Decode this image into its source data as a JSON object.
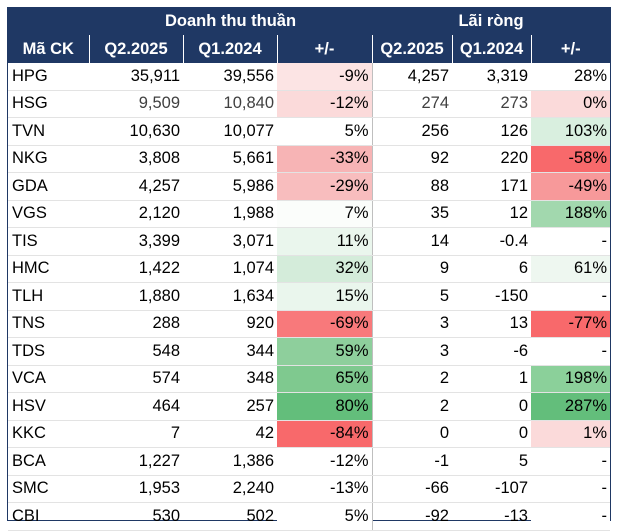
{
  "header": {
    "group_revenue": "Doanh thu thuần",
    "group_profit": "Lãi ròng",
    "col_ticker": "Mã CK",
    "col_q2": "Q2.2025",
    "col_q1": "Q1.2024",
    "col_change": "+/-",
    "col_q2b": "Q2.2025",
    "col_q1b": "Q1.2024",
    "col_changeb": "+/-"
  },
  "colors": {
    "header_bg": "#1f3864",
    "header_text": "#ffffff",
    "negative_scale": "#f8696b",
    "positive_scale": "#63be7b"
  },
  "rows": [
    {
      "ticker": "HPG",
      "rev_q2": "35,911",
      "rev_q1": "39,556",
      "rev_chg": "-9%",
      "rev_bg": "#fce4e4",
      "np_q2": "4,257",
      "np_q1": "3,319",
      "np_chg": "28%",
      "np_bg": "#ffffff"
    },
    {
      "ticker": "HSG",
      "rev_q2": "9,509",
      "rev_q1": "10,840",
      "rev_chg": "-12%",
      "rev_bg": "#fbdada",
      "np_q2": "274",
      "np_q1": "273",
      "np_chg": "0%",
      "np_bg": "#fbdada"
    },
    {
      "ticker": "TVN",
      "rev_q2": "10,630",
      "rev_q1": "10,077",
      "rev_chg": "5%",
      "rev_bg": "#ffffff",
      "np_q2": "256",
      "np_q1": "126",
      "np_chg": "103%",
      "np_bg": "#d9efdf"
    },
    {
      "ticker": "NKG",
      "rev_q2": "3,808",
      "rev_q1": "5,661",
      "rev_chg": "-33%",
      "rev_bg": "#f7b4b5",
      "np_q2": "92",
      "np_q1": "220",
      "np_chg": "-58%",
      "np_bg": "#f8696b"
    },
    {
      "ticker": "GDA",
      "rev_q2": "4,257",
      "rev_q1": "5,986",
      "rev_chg": "-29%",
      "rev_bg": "#f8bdbe",
      "np_q2": "88",
      "np_q1": "171",
      "np_chg": "-49%",
      "np_bg": "#f7999a"
    },
    {
      "ticker": "VGS",
      "rev_q2": "2,120",
      "rev_q1": "1,988",
      "rev_chg": "7%",
      "rev_bg": "#fbfdfb",
      "np_q2": "35",
      "np_q1": "12",
      "np_chg": "188%",
      "np_bg": "#a2d8ae"
    },
    {
      "ticker": "TIS",
      "rev_q2": "3,399",
      "rev_q1": "3,071",
      "rev_chg": "11%",
      "rev_bg": "#eaf6ed",
      "np_q2": "14",
      "np_q1": "-0.4",
      "np_chg": "-",
      "np_bg": "#ffffff"
    },
    {
      "ticker": "HMC",
      "rev_q2": "1,422",
      "rev_q1": "1,074",
      "rev_chg": "32%",
      "rev_bg": "#d4ecda",
      "np_q2": "9",
      "np_q1": "6",
      "np_chg": "61%",
      "np_bg": "#eef7f0"
    },
    {
      "ticker": "TLH",
      "rev_q2": "1,880",
      "rev_q1": "1,634",
      "rev_chg": "15%",
      "rev_bg": "#eaf6ed",
      "np_q2": "5",
      "np_q1": "-150",
      "np_chg": "-",
      "np_bg": "#ffffff"
    },
    {
      "ticker": "TNS",
      "rev_q2": "288",
      "rev_q1": "920",
      "rev_chg": "-69%",
      "rev_bg": "#f8797b",
      "np_q2": "3",
      "np_q1": "13",
      "np_chg": "-77%",
      "np_bg": "#f8696b"
    },
    {
      "ticker": "TDS",
      "rev_q2": "548",
      "rev_q1": "344",
      "rev_chg": "59%",
      "rev_bg": "#8ecf9c",
      "np_q2": "3",
      "np_q1": "-6",
      "np_chg": "-",
      "np_bg": "#ffffff"
    },
    {
      "ticker": "VCA",
      "rev_q2": "574",
      "rev_q1": "348",
      "rev_chg": "65%",
      "rev_bg": "#7fc98f",
      "np_q2": "2",
      "np_q1": "1",
      "np_chg": "198%",
      "np_bg": "#8bd09a"
    },
    {
      "ticker": "HSV",
      "rev_q2": "464",
      "rev_q1": "257",
      "rev_chg": "80%",
      "rev_bg": "#63be7b",
      "np_q2": "2",
      "np_q1": "0",
      "np_chg": "287%",
      "np_bg": "#63be7b"
    },
    {
      "ticker": "KKC",
      "rev_q2": "7",
      "rev_q1": "42",
      "rev_chg": "-84%",
      "rev_bg": "#f8696b",
      "np_q2": "0",
      "np_q1": "0",
      "np_chg": "1%",
      "np_bg": "#fbdada"
    },
    {
      "ticker": "BCA",
      "rev_q2": "1,227",
      "rev_q1": "1,386",
      "rev_chg": "-12%",
      "rev_bg": "#ffffff",
      "np_q2": "-1",
      "np_q1": "5",
      "np_chg": "-",
      "np_bg": "#ffffff"
    },
    {
      "ticker": "SMC",
      "rev_q2": "1,953",
      "rev_q1": "2,240",
      "rev_chg": "-13%",
      "rev_bg": "#ffffff",
      "np_q2": "-66",
      "np_q1": "-107",
      "np_chg": "-",
      "np_bg": "#ffffff"
    },
    {
      "ticker": "CBI",
      "rev_q2": "530",
      "rev_q1": "502",
      "rev_chg": "5%",
      "rev_bg": "#ffffff",
      "np_q2": "-92",
      "np_q1": "-13",
      "np_chg": "-",
      "np_bg": "#ffffff"
    }
  ]
}
